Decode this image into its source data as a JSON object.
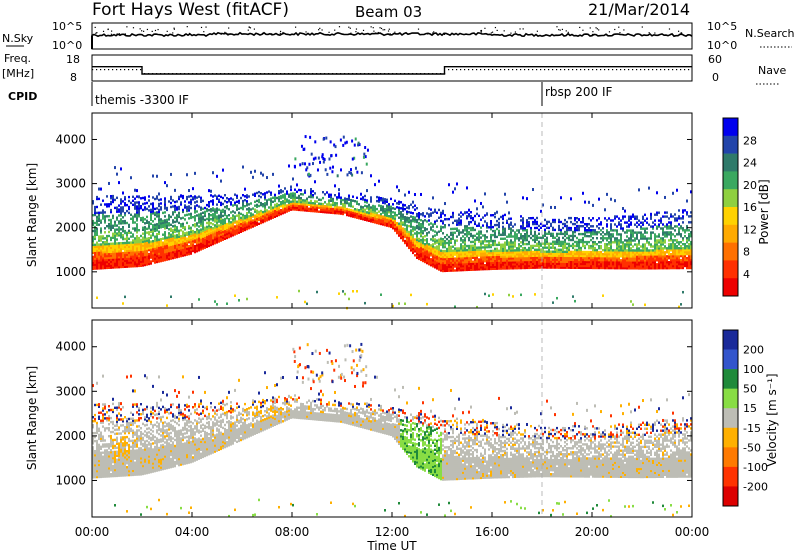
{
  "header": {
    "site": "Fort Hays West (fitACF)",
    "beam": "Beam 03",
    "date": "21/Mar/2014"
  },
  "top_panels": {
    "nsky_label": "N.Sky",
    "nsky_ticks": [
      "10^5",
      "10^0"
    ],
    "nsearch_label": "N.Search",
    "nsearch_ticks": [
      "10^5",
      "10^0"
    ],
    "freq_label": "Freq.",
    "freq_unit": "[MHz]",
    "freq_ticks": [
      "18",
      "8"
    ],
    "nave_label": "Nave",
    "nave_ticks": [
      "60",
      "0"
    ],
    "cpid_label": "CPID",
    "cpid_segments": [
      {
        "label": "themis -3300 IF",
        "start_hour": 0
      },
      {
        "label": "rbsp 200 IF",
        "start_hour": 18
      }
    ],
    "freq_steps": [
      {
        "start": 0,
        "end": 2,
        "freq_mhz": 13.5
      },
      {
        "start": 2,
        "end": 14.1,
        "freq_mhz": 10.7
      },
      {
        "start": 14.1,
        "end": 24,
        "freq_mhz": 13.5
      }
    ]
  },
  "x_axis": {
    "label": "Time UT",
    "ticks": [
      "00:00",
      "04:00",
      "08:00",
      "12:00",
      "16:00",
      "20:00",
      "00:00"
    ]
  },
  "power_panel": {
    "ylabel": "Slant Range [km]",
    "yticks": [
      "4000",
      "3000",
      "2000",
      "1000"
    ],
    "colorbar_label": "Power [dB]",
    "colorbar_ticks": [
      "28",
      "24",
      "20",
      "16",
      "12",
      "8",
      "4"
    ],
    "colors": [
      "#0000ee",
      "#2244aa",
      "#2f7a6a",
      "#3aa860",
      "#8fd040",
      "#ffd200",
      "#ffaa00",
      "#ff7000",
      "#ff3000",
      "#ee0000"
    ]
  },
  "velocity_panel": {
    "ylabel": "Slant Range [km]",
    "yticks": [
      "4000",
      "3000",
      "2000",
      "1000"
    ],
    "colorbar_label": "Velocity [m s⁻¹]",
    "colorbar_ticks": [
      "200",
      "100",
      "50",
      "15",
      "-15",
      "-50",
      "-100",
      "-200"
    ],
    "colors": [
      "#1a2a9a",
      "#3355cc",
      "#1f8a3a",
      "#88dd44",
      "#bdbdb5",
      "#ffb000",
      "#ff7a00",
      "#ff3300",
      "#dd0000"
    ]
  },
  "chart_data": {
    "type": "heatmap",
    "title": "Fort Hays West (fitACF)",
    "xlabel": "Time UT",
    "ylabel": "Slant Range [km]",
    "xlim_hours": [
      0,
      24
    ],
    "ylim_km": [
      180,
      4600
    ],
    "series": [
      {
        "name": "Power [dB]",
        "range": [
          4,
          30
        ]
      },
      {
        "name": "Velocity [m s⁻¹]",
        "range": [
          -200,
          200
        ]
      }
    ],
    "echo_band": {
      "time_hours": [
        0,
        2,
        4,
        6,
        8,
        10,
        12,
        13,
        14,
        16,
        18,
        20,
        22,
        24
      ],
      "lower_km": [
        1050,
        1120,
        1400,
        1900,
        2400,
        2300,
        2000,
        1300,
        1000,
        1050,
        1080,
        1070,
        1060,
        1070
      ],
      "upper_km": [
        2700,
        2700,
        2700,
        2750,
        2900,
        2750,
        2650,
        2500,
        2400,
        2300,
        2200,
        2200,
        2300,
        2400
      ]
    }
  }
}
